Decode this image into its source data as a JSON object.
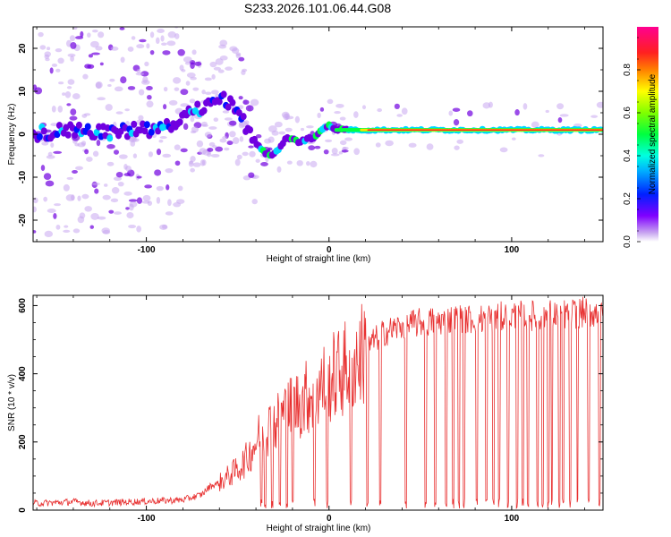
{
  "title": "S233.2026.101.06.44.G08",
  "chart_data": [
    {
      "type": "heatmap",
      "xlabel": "Height of straight line (km)",
      "ylabel": "Frequency (Hz)",
      "xlim": [
        -162,
        150
      ],
      "ylim": [
        -25,
        25
      ],
      "xticks": [
        -100,
        0,
        100
      ],
      "yticks": [
        -20,
        -10,
        0,
        10,
        20
      ],
      "xtick_labels": [
        "-100",
        "0",
        "100"
      ],
      "ytick_labels": [
        "-20",
        "-10",
        "0",
        "10",
        "20"
      ],
      "colorbar": {
        "label": "Normalized spectral amplitude",
        "range": [
          0,
          1
        ],
        "ticks": [
          0.0,
          0.2,
          0.4,
          0.6,
          0.8
        ],
        "tick_labels": [
          "0.0",
          "0.2",
          "0.4",
          "0.6",
          "0.8"
        ],
        "colormap": [
          "#c9a8f0",
          "#7000e0",
          "#0010ff",
          "#00d8ff",
          "#00ff40",
          "#ffe000",
          "#ff2020",
          "#ff00a0"
        ]
      },
      "ridge_frequency_hz": {
        "x": [
          -162,
          -140,
          -120,
          -100,
          -85,
          -75,
          -65,
          -58,
          -52,
          -48,
          -44,
          -40,
          -36,
          -32,
          -28,
          -24,
          -20,
          -16,
          -12,
          -8,
          -4,
          0,
          4,
          8,
          12,
          20,
          40,
          60,
          80,
          100,
          120,
          150
        ],
        "y": [
          0,
          1,
          0.5,
          1,
          2,
          5,
          7,
          8,
          7,
          4,
          0,
          -2,
          -4,
          -5,
          -4,
          -1,
          -1,
          -2,
          -1,
          -1,
          1,
          2,
          1,
          1,
          1,
          1,
          1,
          1,
          1,
          1,
          1,
          1
        ]
      }
    },
    {
      "type": "line",
      "xlabel": "Height of straight line (km)",
      "ylabel": "SNR (10 * v/v)",
      "xlim": [
        -162,
        150
      ],
      "ylim": [
        0,
        630
      ],
      "xticks": [
        -100,
        0,
        100
      ],
      "yticks": [
        0,
        200,
        400,
        600
      ],
      "xtick_labels": [
        "-100",
        "0",
        "100"
      ],
      "ytick_labels": [
        "0",
        "200",
        "400",
        "600"
      ],
      "series": [
        {
          "name": "SNR",
          "color": "#e83030",
          "x": [
            -162,
            -150,
            -140,
            -130,
            -120,
            -110,
            -100,
            -90,
            -80,
            -70,
            -65,
            -60,
            -55,
            -50,
            -45,
            -40,
            -35,
            -30,
            -25,
            -20,
            -15,
            -10,
            -5,
            0,
            5,
            10,
            15,
            20,
            25,
            30,
            35,
            40,
            50,
            60,
            70,
            80,
            90,
            100,
            110,
            120,
            130,
            140,
            150
          ],
          "y": [
            20,
            22,
            25,
            20,
            22,
            24,
            26,
            28,
            30,
            45,
            70,
            80,
            100,
            120,
            150,
            200,
            240,
            250,
            280,
            300,
            320,
            340,
            360,
            380,
            400,
            420,
            440,
            470,
            500,
            520,
            530,
            540,
            550,
            555,
            560,
            560,
            565,
            570,
            570,
            575,
            575,
            580,
            580
          ]
        }
      ],
      "dropouts_x_km": [
        -37,
        -35,
        -31,
        -27,
        -23,
        -20,
        -8,
        -1,
        12,
        21,
        28,
        42,
        53,
        58,
        64,
        68,
        71,
        74,
        81,
        86,
        90,
        93,
        98,
        103,
        106,
        109,
        114,
        117,
        120,
        122,
        126,
        128,
        132,
        136,
        142,
        148
      ]
    }
  ]
}
